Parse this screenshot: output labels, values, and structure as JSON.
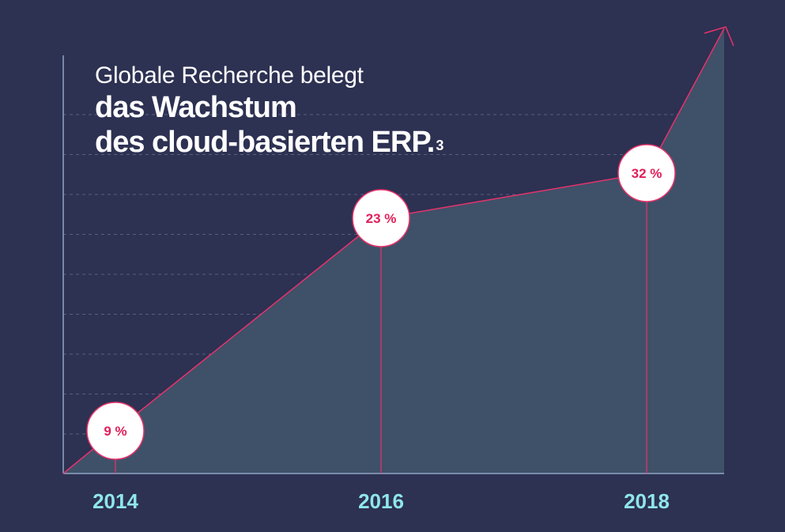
{
  "title": {
    "subtitle": "Globale Recherche belegt",
    "line1": "das Wachstum",
    "line2": "des cloud-basierten ERP.",
    "footnote": "3"
  },
  "colors": {
    "background": "#2d3152",
    "area": "#3f5069",
    "line": "#e6336b",
    "grid": "#7a86a6",
    "axis": "#8ea6c4",
    "tick_label": "#8fe6ea",
    "badge_fill": "#ffffff",
    "badge_text": "#e0205a"
  },
  "chart_data": {
    "type": "area",
    "title": "Globale Recherche belegt das Wachstum des cloud-basierten ERP.³",
    "categories": [
      "2014",
      "2016",
      "2018"
    ],
    "x": [
      2014,
      2016,
      2018
    ],
    "values": [
      9,
      23,
      32
    ],
    "data_labels": [
      "9 %",
      "23 %",
      "32 %"
    ],
    "unit": "%",
    "xlabel": "",
    "ylabel": "",
    "grid": true,
    "trend": "rising, ending in an upward arrow"
  }
}
